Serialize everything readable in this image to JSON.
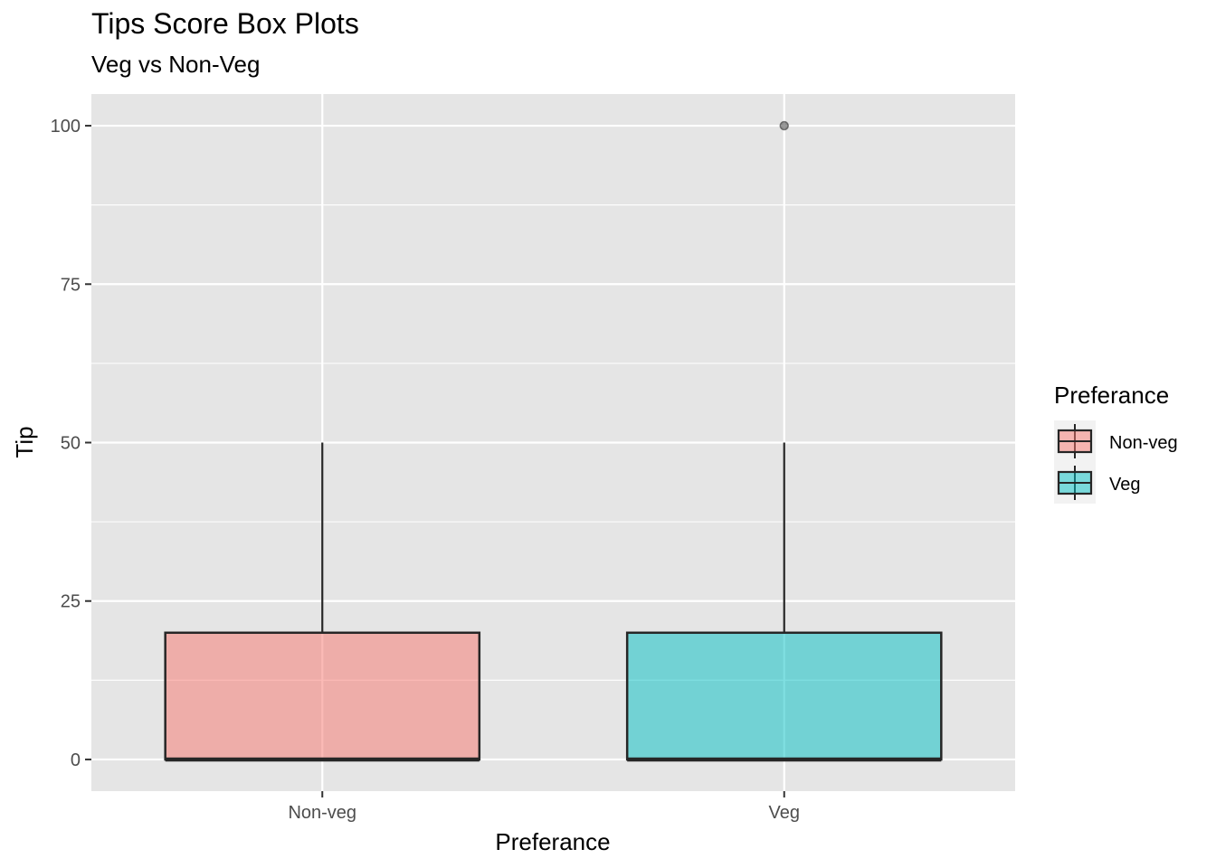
{
  "chart_data": {
    "type": "box",
    "title": "Tips Score Box Plots",
    "subtitle": "Veg vs Non-Veg",
    "xlabel": "Preferance",
    "ylabel": "Tip",
    "ylim": [
      -5,
      105
    ],
    "y_ticks": [
      0,
      25,
      50,
      75,
      100
    ],
    "y_tick_labels": [
      "0",
      "25",
      "50",
      "75",
      "100"
    ],
    "grid": true,
    "categories": [
      "Non-veg",
      "Veg"
    ],
    "boxes": [
      {
        "category": "Non-veg",
        "min": 0,
        "q1": 0,
        "median": 0,
        "q3": 20,
        "max": 50,
        "outliers": [],
        "color": "#F8766D"
      },
      {
        "category": "Veg",
        "min": 0,
        "q1": 0,
        "median": 0,
        "q3": 20,
        "max": 50,
        "outliers": [
          100
        ],
        "color": "#00BFC4"
      }
    ],
    "legend": {
      "title": "Preferance",
      "position": "right",
      "items": [
        {
          "label": "Non-veg",
          "color": "#F8766D"
        },
        {
          "label": "Veg",
          "color": "#00BFC4"
        }
      ]
    },
    "colors": {
      "panel_bg": "#e5e5e5",
      "grid": "#ffffff",
      "box_line": "#262626"
    }
  }
}
